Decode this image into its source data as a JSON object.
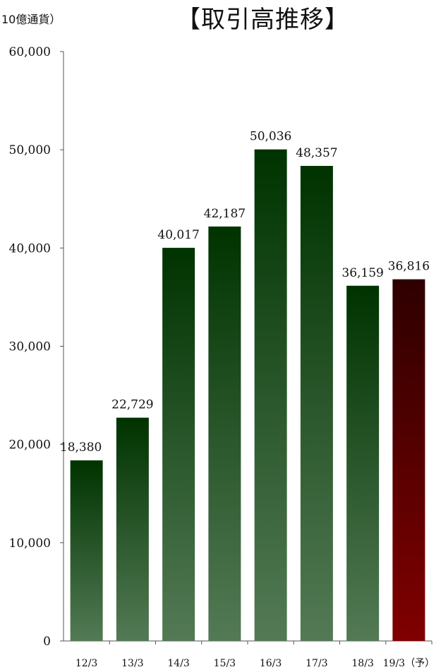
{
  "unit_label": "10億通貨）",
  "chart_data": {
    "type": "bar",
    "title": "【取引高推移】",
    "xlabel": "",
    "ylabel": "",
    "ylim": [
      0,
      60000
    ],
    "yticks": [
      0,
      10000,
      20000,
      30000,
      40000,
      50000,
      60000
    ],
    "ytick_labels": [
      "0",
      "10,000",
      "20,000",
      "30,000",
      "40,000",
      "50,000",
      "60,000"
    ],
    "categories": [
      "12/3",
      "13/3",
      "14/3",
      "15/3",
      "16/3",
      "17/3",
      "18/3",
      "19/3（予）"
    ],
    "values": [
      18380,
      22729,
      40017,
      42187,
      50036,
      48357,
      36159,
      36816
    ],
    "data_labels": [
      "18,380",
      "22,729",
      "40,017",
      "42,187",
      "50,036",
      "48,357",
      "36,159",
      "36,816"
    ],
    "highlight_index": 7,
    "grid": false,
    "legend": "none",
    "colors": {
      "bar_top": "#003300",
      "bar_bottom": "#537a55",
      "forecast_top": "#2e0000",
      "forecast_bottom": "#800000",
      "axis": "#555555",
      "text": "#111111"
    }
  }
}
